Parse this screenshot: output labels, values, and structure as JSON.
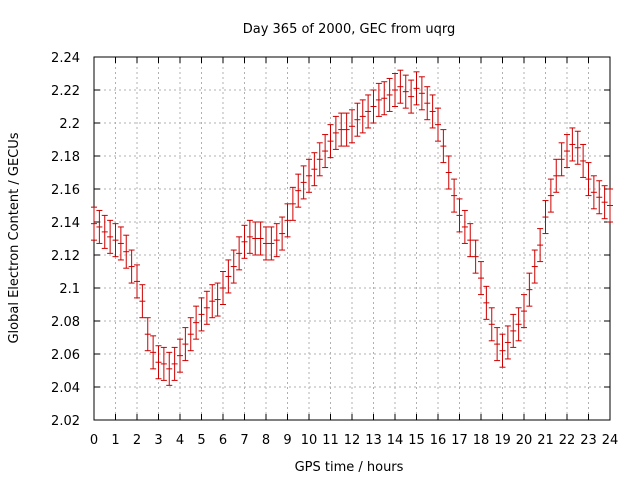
{
  "chart_data": {
    "type": "scatter",
    "title": "Day 365 of 2000, GEC from uqrg",
    "xlabel": "GPS time / hours",
    "ylabel": "Global Electron Content / GECUs",
    "xlim": [
      0,
      24
    ],
    "ylim": [
      2.02,
      2.24
    ],
    "grid": true,
    "x_ticks": [
      0,
      1,
      2,
      3,
      4,
      5,
      6,
      7,
      8,
      9,
      10,
      11,
      12,
      13,
      14,
      15,
      16,
      17,
      18,
      19,
      20,
      21,
      22,
      23,
      24
    ],
    "x_tick_labels": [
      "0",
      "1",
      "2",
      "3",
      "4",
      "5",
      "6",
      "7",
      "8",
      "9",
      "10",
      "11",
      "12",
      "13",
      "14",
      "15",
      "16",
      "17",
      "18",
      "19",
      "20",
      "21",
      "22",
      "23",
      "24"
    ],
    "y_ticks": [
      2.02,
      2.04,
      2.06,
      2.08,
      2.1,
      2.12,
      2.14,
      2.16,
      2.18,
      2.2,
      2.22,
      2.24
    ],
    "y_tick_labels": [
      "2.02",
      "2.04",
      "2.06",
      "2.08",
      "2.1",
      "2.12",
      "2.14",
      "2.16",
      "2.18",
      "2.2",
      "2.22",
      "2.24"
    ],
    "series_color": "#cc0000",
    "error": 0.01,
    "series": [
      {
        "name": "GEC",
        "x": [
          0,
          0.25,
          0.5,
          0.75,
          1,
          1.25,
          1.5,
          1.75,
          2,
          2.25,
          2.5,
          2.75,
          3,
          3.25,
          3.5,
          3.75,
          4,
          4.25,
          4.5,
          4.75,
          5,
          5.25,
          5.5,
          5.75,
          6,
          6.25,
          6.5,
          6.75,
          7,
          7.25,
          7.5,
          7.75,
          8,
          8.25,
          8.5,
          8.75,
          9,
          9.25,
          9.5,
          9.75,
          10,
          10.25,
          10.5,
          10.75,
          11,
          11.25,
          11.5,
          11.75,
          12,
          12.25,
          12.5,
          12.75,
          13,
          13.25,
          13.5,
          13.75,
          14,
          14.25,
          14.5,
          14.75,
          15,
          15.25,
          15.5,
          15.75,
          16,
          16.25,
          16.5,
          16.75,
          17,
          17.25,
          17.5,
          17.75,
          18,
          18.25,
          18.5,
          18.75,
          19,
          19.25,
          19.5,
          19.75,
          20,
          20.25,
          20.5,
          20.75,
          21,
          21.25,
          21.5,
          21.75,
          22,
          22.25,
          22.5,
          22.75,
          23,
          23.25,
          23.5,
          23.75,
          24
        ],
        "y": [
          2.139,
          2.137,
          2.134,
          2.131,
          2.129,
          2.127,
          2.122,
          2.113,
          2.104,
          2.092,
          2.072,
          2.061,
          2.055,
          2.054,
          2.051,
          2.054,
          2.059,
          2.066,
          2.072,
          2.079,
          2.084,
          2.088,
          2.092,
          2.093,
          2.1,
          2.107,
          2.113,
          2.121,
          2.128,
          2.131,
          2.13,
          2.13,
          2.127,
          2.127,
          2.129,
          2.133,
          2.141,
          2.151,
          2.159,
          2.164,
          2.168,
          2.172,
          2.178,
          2.183,
          2.189,
          2.194,
          2.196,
          2.196,
          2.198,
          2.202,
          2.204,
          2.207,
          2.21,
          2.214,
          2.215,
          2.217,
          2.22,
          2.222,
          2.219,
          2.216,
          2.221,
          2.218,
          2.212,
          2.207,
          2.199,
          2.186,
          2.17,
          2.156,
          2.144,
          2.137,
          2.129,
          2.119,
          2.106,
          2.091,
          2.078,
          2.066,
          2.062,
          2.067,
          2.074,
          2.078,
          2.086,
          2.099,
          2.113,
          2.126,
          2.143,
          2.156,
          2.168,
          2.178,
          2.183,
          2.187,
          2.185,
          2.177,
          2.166,
          2.158,
          2.155,
          2.152,
          2.15
        ]
      }
    ]
  }
}
